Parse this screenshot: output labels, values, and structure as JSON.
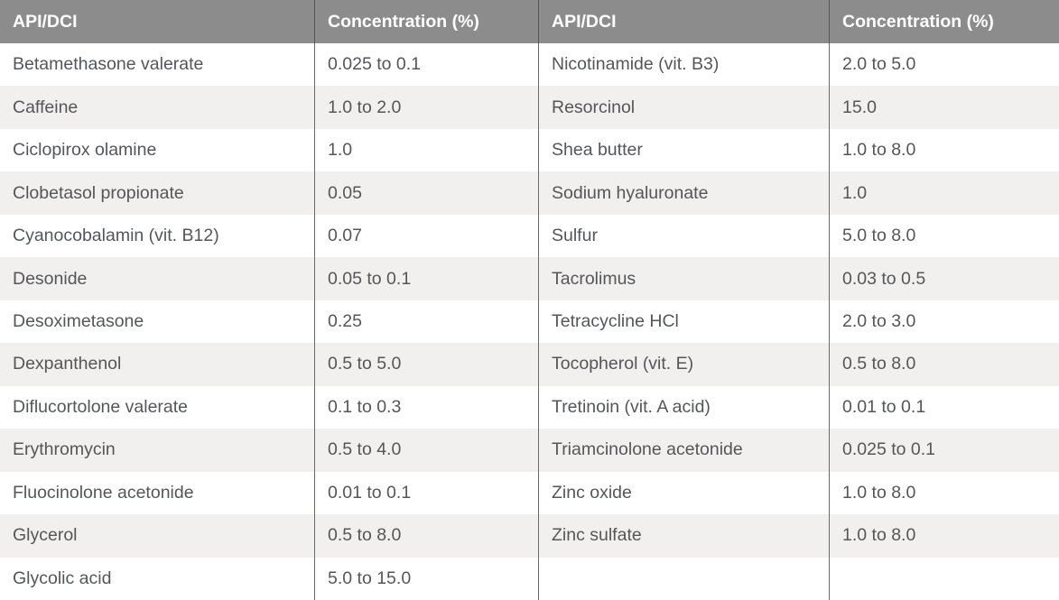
{
  "colors": {
    "header_bg": "#8c8c8c",
    "header_text": "#ffffff",
    "row_bg": "#ffffff",
    "stripe_bg": "#f1f0ee",
    "body_text": "#55565a",
    "divider": "#696969",
    "divider_header": "#565656"
  },
  "table": {
    "headers": {
      "api": "API/DCI",
      "concentration": "Concentration (%)"
    },
    "left": {
      "rows": [
        {
          "api": "Betamethasone valerate",
          "concentration": "0.025 to 0.1"
        },
        {
          "api": "Caffeine",
          "concentration": "1.0 to 2.0"
        },
        {
          "api": "Ciclopirox olamine",
          "concentration": "1.0"
        },
        {
          "api": "Clobetasol propionate",
          "concentration": "0.05"
        },
        {
          "api": "Cyanocobalamin (vit. B12)",
          "concentration": "0.07"
        },
        {
          "api": "Desonide",
          "concentration": "0.05 to 0.1"
        },
        {
          "api": "Desoximetasone",
          "concentration": "0.25"
        },
        {
          "api": "Dexpanthenol",
          "concentration": "0.5 to 5.0"
        },
        {
          "api": "Diflucortolone valerate",
          "concentration": "0.1 to 0.3"
        },
        {
          "api": "Erythromycin",
          "concentration": "0.5 to 4.0"
        },
        {
          "api": "Fluocinolone acetonide",
          "concentration": "0.01 to 0.1"
        },
        {
          "api": "Glycerol",
          "concentration": "0.5 to 8.0"
        },
        {
          "api": "Glycolic acid",
          "concentration": "5.0 to 15.0"
        }
      ]
    },
    "right": {
      "rows": [
        {
          "api": "Nicotinamide (vit. B3)",
          "concentration": "2.0 to 5.0"
        },
        {
          "api": "Resorcinol",
          "concentration": "15.0"
        },
        {
          "api": "Shea butter",
          "concentration": "1.0 to 8.0"
        },
        {
          "api": "Sodium hyaluronate",
          "concentration": "1.0"
        },
        {
          "api": "Sulfur",
          "concentration": "5.0 to 8.0"
        },
        {
          "api": "Tacrolimus",
          "concentration": "0.03 to 0.5"
        },
        {
          "api": "Tetracycline HCl",
          "concentration": "2.0 to 3.0"
        },
        {
          "api": "Tocopherol (vit. E)",
          "concentration": "0.5 to 8.0"
        },
        {
          "api": "Tretinoin (vit. A acid)",
          "concentration": "0.01 to 0.1"
        },
        {
          "api": "Triamcinolone acetonide",
          "concentration": "0.025 to 0.1"
        },
        {
          "api": "Zinc oxide",
          "concentration": "1.0 to 8.0"
        },
        {
          "api": "Zinc sulfate",
          "concentration": "1.0 to 8.0"
        }
      ]
    }
  }
}
